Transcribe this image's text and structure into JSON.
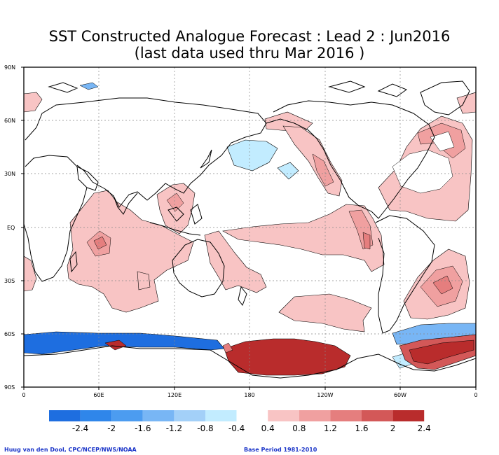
{
  "title_line1": "SST Constructed Analogue Forecast : Lead 2 : Jun2016",
  "title_line2": "(last data used thru Mar 2016 )",
  "lat_labels": [
    "90N",
    "60N",
    "30N",
    "EQ",
    "30S",
    "60S",
    "90S"
  ],
  "lon_labels": [
    "0",
    "60E",
    "120E",
    "180",
    "120W",
    "60W",
    "0"
  ],
  "colorbar": {
    "labels": [
      "-2.4",
      "-2",
      "-1.6",
      "-1.2",
      "-0.8",
      "-0.4",
      "0.4",
      "0.8",
      "1.2",
      "1.6",
      "2",
      "2.4"
    ],
    "colors": [
      "#1e6ee0",
      "#2f86ea",
      "#4c9cf0",
      "#78b6f5",
      "#a3d0f8",
      "#c2ecff",
      "#ffffff",
      "#f8c4c4",
      "#f0a0a0",
      "#e57e7e",
      "#d35858",
      "#b92c2c"
    ]
  },
  "credit_left": "Huug van den Dool, CPC/NCEP/NWS/NOAA",
  "credit_right": "Base Period 1981-2010",
  "anomaly_colors": {
    "warm_light": "#f8c4c4",
    "warm_mid": "#f0a0a0",
    "warm_strong": "#e57e7e",
    "warm_extreme": "#b92c2c",
    "cold_light": "#c2ecff",
    "cold_mid": "#78b6f5",
    "cold_strong": "#1e6ee0"
  }
}
